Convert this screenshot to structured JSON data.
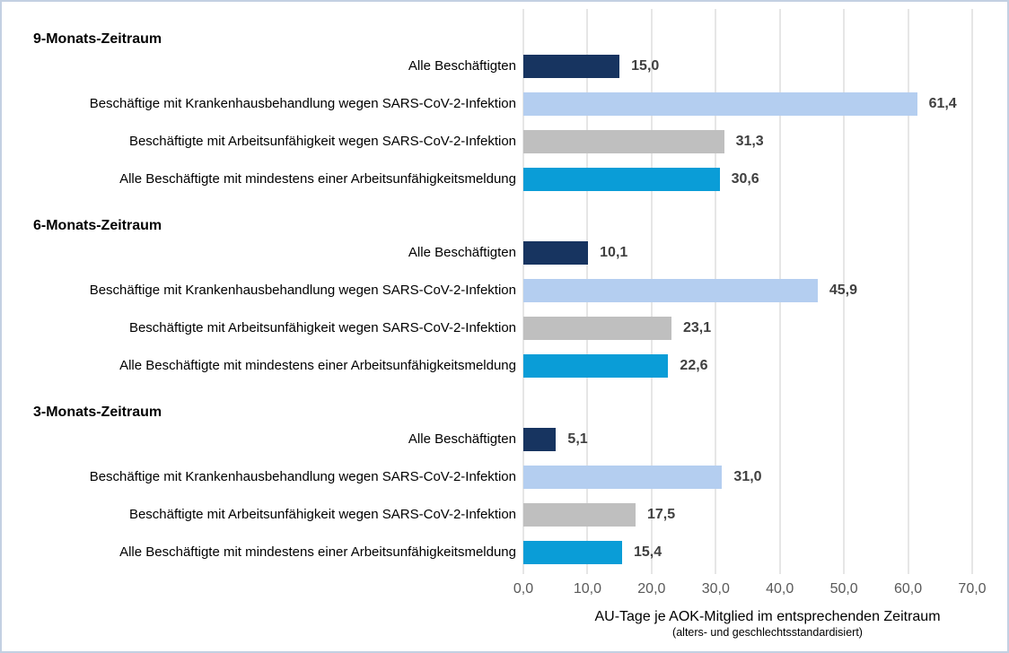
{
  "frame": {
    "border_color": "#C3D0E2",
    "background": "#FFFFFF"
  },
  "chart_data": {
    "type": "bar",
    "orientation": "horizontal",
    "title": "",
    "xlabel": "AU-Tage je AOK-Mitglied im entsprechenden Zeitraum",
    "xlabel_note": "(alters- und geschlechtsstandardisiert)",
    "xlim": [
      0,
      70
    ],
    "x_ticks": [
      "0,0",
      "10,0",
      "20,0",
      "30,0",
      "40,0",
      "50,0",
      "60,0",
      "70,0"
    ],
    "grid": true,
    "legend": "none",
    "colors": {
      "alle_beschaeftigten": "#173460",
      "krankenhausbehandlung": "#B4CEF0",
      "arbeitsunfaehigkeit_covid": "#BFBFBF",
      "mindestens_eine_au_meldung": "#0A9DD7",
      "value_label": "#404040",
      "tick_label": "#595959",
      "gridline": "#E6E6E6"
    },
    "groups": [
      {
        "title": "9-Monats-Zeitraum",
        "bars": [
          {
            "label": "Alle Beschäftigten",
            "series": "alle_beschaeftigten",
            "value": 15.0,
            "value_label": "15,0",
            "color": "#173460"
          },
          {
            "label": "Beschäftige mit Krankenhausbehandlung wegen SARS-CoV-2-Infektion",
            "series": "krankenhausbehandlung",
            "value": 61.4,
            "value_label": "61,4",
            "color": "#B4CEF0"
          },
          {
            "label": "Beschäftigte mit Arbeitsunfähigkeit wegen SARS-CoV-2-Infektion",
            "series": "arbeitsunfaehigkeit_covid",
            "value": 31.3,
            "value_label": "31,3",
            "color": "#BFBFBF"
          },
          {
            "label": "Alle Beschäftigte mit mindestens einer Arbeitsunfähigkeitsmeldung",
            "series": "mindestens_eine_au_meldung",
            "value": 30.6,
            "value_label": "30,6",
            "color": "#0A9DD7"
          }
        ]
      },
      {
        "title": "6-Monats-Zeitraum",
        "bars": [
          {
            "label": "Alle Beschäftigten",
            "series": "alle_beschaeftigten",
            "value": 10.1,
            "value_label": "10,1",
            "color": "#173460"
          },
          {
            "label": "Beschäftige mit Krankenhausbehandlung wegen SARS-CoV-2-Infektion",
            "series": "krankenhausbehandlung",
            "value": 45.9,
            "value_label": "45,9",
            "color": "#B4CEF0"
          },
          {
            "label": "Beschäftigte mit Arbeitsunfähigkeit wegen SARS-CoV-2-Infektion",
            "series": "arbeitsunfaehigkeit_covid",
            "value": 23.1,
            "value_label": "23,1",
            "color": "#BFBFBF"
          },
          {
            "label": "Alle Beschäftigte mit mindestens einer Arbeitsunfähigkeitsmeldung",
            "series": "mindestens_eine_au_meldung",
            "value": 22.6,
            "value_label": "22,6",
            "color": "#0A9DD7"
          }
        ]
      },
      {
        "title": "3-Monats-Zeitraum",
        "bars": [
          {
            "label": "Alle Beschäftigten",
            "series": "alle_beschaeftigten",
            "value": 5.1,
            "value_label": "5,1",
            "color": "#173460"
          },
          {
            "label": "Beschäftige mit Krankenhausbehandlung wegen SARS-CoV-2-Infektion",
            "series": "krankenhausbehandlung",
            "value": 31.0,
            "value_label": "31,0",
            "color": "#B4CEF0"
          },
          {
            "label": "Beschäftigte mit Arbeitsunfähigkeit wegen SARS-CoV-2-Infektion",
            "series": "arbeitsunfaehigkeit_covid",
            "value": 17.5,
            "value_label": "17,5",
            "color": "#BFBFBF"
          },
          {
            "label": "Alle Beschäftigte mit mindestens einer Arbeitsunfähigkeitsmeldung",
            "series": "mindestens_eine_au_meldung",
            "value": 15.4,
            "value_label": "15,4",
            "color": "#0A9DD7"
          }
        ]
      }
    ]
  }
}
